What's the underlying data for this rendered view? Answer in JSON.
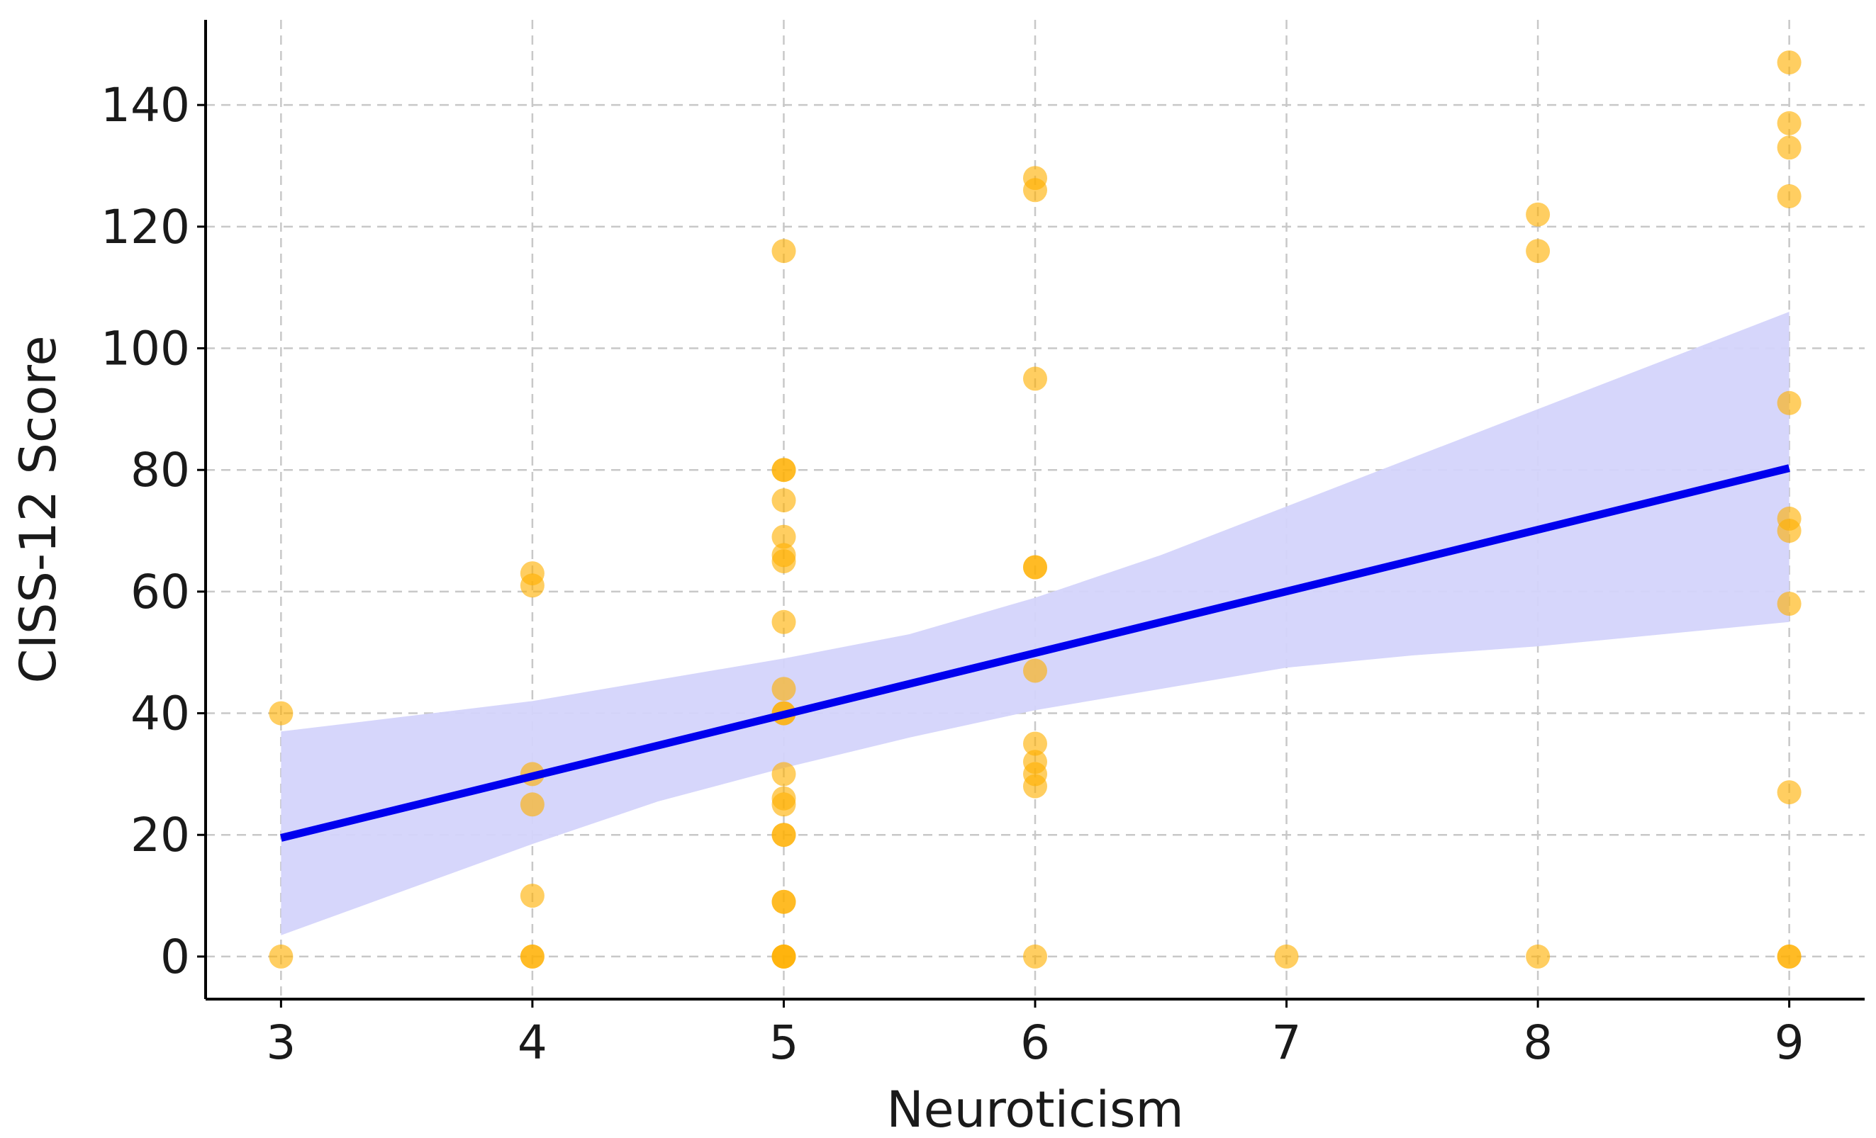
{
  "chart_data": {
    "type": "scatter",
    "title": "",
    "xlabel": "Neuroticism",
    "ylabel": "CISS-12 Score",
    "xlim": [
      2.7,
      9.3
    ],
    "ylim": [
      -7,
      154
    ],
    "x_ticks": [
      3,
      4,
      5,
      6,
      7,
      8,
      9
    ],
    "y_ticks": [
      0,
      20,
      40,
      60,
      80,
      100,
      120,
      140
    ],
    "grid": true,
    "legend": "none",
    "points": [
      {
        "x": 3,
        "y": 40
      },
      {
        "x": 3,
        "y": 0
      },
      {
        "x": 4,
        "y": 63
      },
      {
        "x": 4,
        "y": 61
      },
      {
        "x": 4,
        "y": 30
      },
      {
        "x": 4,
        "y": 25
      },
      {
        "x": 4,
        "y": 10
      },
      {
        "x": 4,
        "y": 0
      },
      {
        "x": 4,
        "y": 0
      },
      {
        "x": 5,
        "y": 116
      },
      {
        "x": 5,
        "y": 80
      },
      {
        "x": 5,
        "y": 80
      },
      {
        "x": 5,
        "y": 75
      },
      {
        "x": 5,
        "y": 69
      },
      {
        "x": 5,
        "y": 66
      },
      {
        "x": 5,
        "y": 65
      },
      {
        "x": 5,
        "y": 55
      },
      {
        "x": 5,
        "y": 44
      },
      {
        "x": 5,
        "y": 40
      },
      {
        "x": 5,
        "y": 40
      },
      {
        "x": 5,
        "y": 30
      },
      {
        "x": 5,
        "y": 26
      },
      {
        "x": 5,
        "y": 25
      },
      {
        "x": 5,
        "y": 20
      },
      {
        "x": 5,
        "y": 20
      },
      {
        "x": 5,
        "y": 9
      },
      {
        "x": 5,
        "y": 9
      },
      {
        "x": 5,
        "y": 0
      },
      {
        "x": 5,
        "y": 0
      },
      {
        "x": 5,
        "y": 0
      },
      {
        "x": 6,
        "y": 128
      },
      {
        "x": 6,
        "y": 126
      },
      {
        "x": 6,
        "y": 95
      },
      {
        "x": 6,
        "y": 64
      },
      {
        "x": 6,
        "y": 64
      },
      {
        "x": 6,
        "y": 47
      },
      {
        "x": 6,
        "y": 35
      },
      {
        "x": 6,
        "y": 32
      },
      {
        "x": 6,
        "y": 30
      },
      {
        "x": 6,
        "y": 28
      },
      {
        "x": 6,
        "y": 0
      },
      {
        "x": 7,
        "y": 0
      },
      {
        "x": 8,
        "y": 122
      },
      {
        "x": 8,
        "y": 116
      },
      {
        "x": 8,
        "y": 0
      },
      {
        "x": 9,
        "y": 147
      },
      {
        "x": 9,
        "y": 137
      },
      {
        "x": 9,
        "y": 133
      },
      {
        "x": 9,
        "y": 125
      },
      {
        "x": 9,
        "y": 91
      },
      {
        "x": 9,
        "y": 72
      },
      {
        "x": 9,
        "y": 70
      },
      {
        "x": 9,
        "y": 58
      },
      {
        "x": 9,
        "y": 27
      },
      {
        "x": 9,
        "y": 0
      },
      {
        "x": 9,
        "y": 0
      }
    ],
    "regression_line": {
      "x": [
        3,
        9
      ],
      "y": [
        19.5,
        80.3
      ]
    },
    "confidence_band": {
      "x": [
        3,
        3.5,
        4,
        4.5,
        5,
        5.5,
        6,
        6.5,
        7,
        7.5,
        8,
        8.5,
        9
      ],
      "upper": [
        37,
        39.5,
        42,
        45.5,
        49,
        53,
        59,
        66,
        74,
        82,
        90,
        98,
        106
      ],
      "lower": [
        3.5,
        11,
        18.5,
        25.5,
        31,
        36,
        40.5,
        44,
        47.5,
        49.5,
        51,
        53,
        55
      ]
    },
    "colors": {
      "points": "#ffb000",
      "regression_line": "#0000ee",
      "confidence_band": "#d4d4fb"
    }
  }
}
